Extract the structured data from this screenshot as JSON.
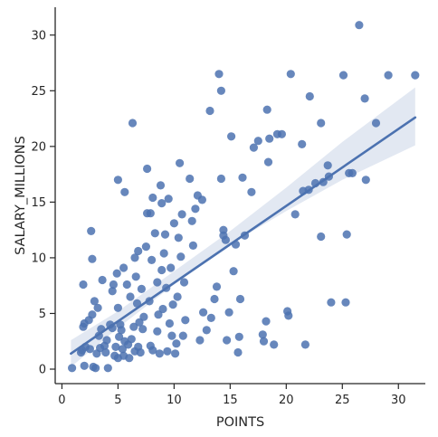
{
  "chart_data": {
    "type": "scatter",
    "xlabel": "POINTS",
    "ylabel": "SALARY_MILLIONS",
    "xlim": [
      -0.6,
      32.4
    ],
    "ylim": [
      -1.3,
      32.5
    ],
    "xticks": [
      0,
      5,
      10,
      15,
      20,
      25,
      30
    ],
    "yticks": [
      0,
      5,
      10,
      15,
      20,
      25,
      30
    ],
    "grid": false,
    "point_color": "#4c72b0",
    "regression": {
      "x_range": [
        0.8,
        31.5
      ],
      "y_start": 1.4,
      "y_end": 22.6,
      "ci_band": [
        {
          "x": 0.8,
          "lo": 0.2,
          "hi": 2.6
        },
        {
          "x": 5,
          "lo": 3.7,
          "hi": 5.2
        },
        {
          "x": 10,
          "lo": 7.6,
          "hi": 8.8
        },
        {
          "x": 15,
          "lo": 11.2,
          "hi": 12.4
        },
        {
          "x": 20,
          "lo": 14.2,
          "hi": 16.3
        },
        {
          "x": 25,
          "lo": 17.0,
          "hi": 20.4
        },
        {
          "x": 31.5,
          "lo": 20.1,
          "hi": 25.3
        }
      ]
    },
    "points": [
      [
        0.9,
        0.1
      ],
      [
        1.7,
        1.5
      ],
      [
        1.8,
        1.7
      ],
      [
        2.1,
        2.0
      ],
      [
        2.5,
        1.8
      ],
      [
        1.9,
        3.8
      ],
      [
        2.0,
        4.1
      ],
      [
        2.4,
        4.4
      ],
      [
        1.9,
        7.6
      ],
      [
        2.7,
        9.9
      ],
      [
        2.6,
        12.4
      ],
      [
        2.0,
        0.3
      ],
      [
        2.8,
        0.2
      ],
      [
        3.0,
        0.1
      ],
      [
        2.9,
        6.1
      ],
      [
        2.7,
        4.9
      ],
      [
        3.2,
        5.5
      ],
      [
        3.3,
        3.0
      ],
      [
        3.5,
        3.6
      ],
      [
        3.6,
        8.0
      ],
      [
        3.1,
        1.4
      ],
      [
        3.4,
        1.9
      ],
      [
        3.8,
        2.1
      ],
      [
        3.9,
        1.5
      ],
      [
        4.0,
        2.6
      ],
      [
        4.1,
        0.1
      ],
      [
        4.3,
        4.0
      ],
      [
        4.5,
        3.7
      ],
      [
        4.6,
        7.6
      ],
      [
        4.5,
        7.0
      ],
      [
        4.7,
        1.2
      ],
      [
        4.8,
        2.0
      ],
      [
        5.0,
        1.0
      ],
      [
        5.0,
        17.0
      ],
      [
        4.9,
        8.6
      ],
      [
        5.0,
        5.5
      ],
      [
        5.1,
        2.9
      ],
      [
        5.2,
        4.0
      ],
      [
        5.3,
        3.5
      ],
      [
        5.4,
        1.8
      ],
      [
        5.5,
        1.2
      ],
      [
        5.6,
        2.5
      ],
      [
        5.6,
        15.9
      ],
      [
        5.5,
        9.1
      ],
      [
        5.8,
        7.6
      ],
      [
        5.9,
        2.2
      ],
      [
        6.0,
        1.0
      ],
      [
        6.2,
        2.7
      ],
      [
        6.3,
        22.1
      ],
      [
        6.1,
        6.5
      ],
      [
        6.4,
        3.8
      ],
      [
        6.5,
        1.6
      ],
      [
        6.6,
        8.3
      ],
      [
        6.7,
        5.9
      ],
      [
        6.8,
        2.0
      ],
      [
        6.9,
        4.2
      ],
      [
        6.5,
        10.0
      ],
      [
        6.8,
        10.6
      ],
      [
        7.0,
        1.5
      ],
      [
        7.1,
        7.2
      ],
      [
        7.2,
        3.6
      ],
      [
        7.3,
        4.7
      ],
      [
        7.5,
        11.0
      ],
      [
        7.6,
        14.0
      ],
      [
        7.6,
        18.0
      ],
      [
        7.8,
        6.1
      ],
      [
        7.9,
        2.1
      ],
      [
        7.9,
        14.0
      ],
      [
        8.0,
        9.8
      ],
      [
        8.1,
        1.7
      ],
      [
        8.1,
        15.4
      ],
      [
        8.3,
        12.2
      ],
      [
        8.5,
        7.8
      ],
      [
        8.5,
        3.4
      ],
      [
        8.6,
        4.9
      ],
      [
        8.7,
        1.4
      ],
      [
        8.8,
        16.5
      ],
      [
        8.9,
        14.9
      ],
      [
        8.9,
        8.9
      ],
      [
        9.0,
        5.4
      ],
      [
        9.1,
        10.4
      ],
      [
        9.2,
        12.1
      ],
      [
        9.3,
        7.3
      ],
      [
        9.4,
        1.6
      ],
      [
        9.5,
        15.3
      ],
      [
        9.6,
        4.1
      ],
      [
        9.7,
        9.1
      ],
      [
        9.8,
        3.0
      ],
      [
        9.9,
        5.8
      ],
      [
        10.0,
        13.1
      ],
      [
        10.1,
        1.4
      ],
      [
        10.2,
        2.3
      ],
      [
        10.3,
        6.5
      ],
      [
        10.4,
        11.8
      ],
      [
        10.5,
        18.5
      ],
      [
        10.6,
        10.1
      ],
      [
        10.7,
        13.9
      ],
      [
        10.8,
        3.0
      ],
      [
        10.9,
        7.8
      ],
      [
        11.0,
        4.4
      ],
      [
        11.4,
        17.1
      ],
      [
        11.6,
        13.3
      ],
      [
        11.7,
        11.1
      ],
      [
        11.9,
        14.4
      ],
      [
        12.1,
        15.6
      ],
      [
        12.3,
        2.6
      ],
      [
        12.6,
        5.1
      ],
      [
        12.9,
        3.5
      ],
      [
        13.2,
        23.2
      ],
      [
        13.3,
        4.6
      ],
      [
        13.6,
        6.3
      ],
      [
        13.8,
        7.4
      ],
      [
        14.0,
        26.5
      ],
      [
        14.2,
        25.0
      ],
      [
        14.2,
        17.1
      ],
      [
        14.4,
        12.5
      ],
      [
        14.4,
        12.0
      ],
      [
        14.6,
        11.6
      ],
      [
        14.7,
        2.6
      ],
      [
        14.9,
        5.1
      ],
      [
        15.1,
        20.9
      ],
      [
        15.3,
        8.8
      ],
      [
        15.5,
        11.2
      ],
      [
        15.7,
        1.5
      ],
      [
        15.8,
        2.9
      ],
      [
        15.9,
        6.3
      ],
      [
        16.1,
        17.2
      ],
      [
        16.3,
        12.0
      ],
      [
        16.9,
        15.9
      ],
      [
        17.1,
        19.9
      ],
      [
        17.5,
        20.5
      ],
      [
        17.9,
        3.1
      ],
      [
        18.0,
        2.5
      ],
      [
        18.2,
        4.3
      ],
      [
        18.3,
        23.3
      ],
      [
        18.5,
        20.7
      ],
      [
        18.9,
        2.2
      ],
      [
        19.2,
        21.1
      ],
      [
        19.6,
        21.1
      ],
      [
        20.1,
        5.2
      ],
      [
        20.2,
        4.8
      ],
      [
        20.4,
        26.5
      ],
      [
        20.8,
        13.9
      ],
      [
        21.4,
        20.2
      ],
      [
        21.7,
        2.2
      ],
      [
        22.0,
        16.1
      ],
      [
        22.1,
        24.5
      ],
      [
        22.6,
        16.7
      ],
      [
        23.1,
        11.9
      ],
      [
        23.3,
        16.8
      ],
      [
        23.7,
        18.3
      ],
      [
        23.8,
        17.3
      ],
      [
        24.0,
        6.0
      ],
      [
        25.1,
        26.4
      ],
      [
        25.3,
        6.0
      ],
      [
        25.4,
        12.1
      ],
      [
        25.6,
        17.6
      ],
      [
        25.9,
        17.6
      ],
      [
        26.5,
        30.9
      ],
      [
        27.0,
        24.3
      ],
      [
        27.1,
        17.0
      ],
      [
        28.0,
        22.1
      ],
      [
        29.1,
        26.4
      ],
      [
        31.5,
        26.4
      ],
      [
        23.1,
        22.1
      ],
      [
        21.5,
        16.0
      ],
      [
        12.5,
        15.2
      ],
      [
        18.4,
        18.6
      ]
    ]
  }
}
